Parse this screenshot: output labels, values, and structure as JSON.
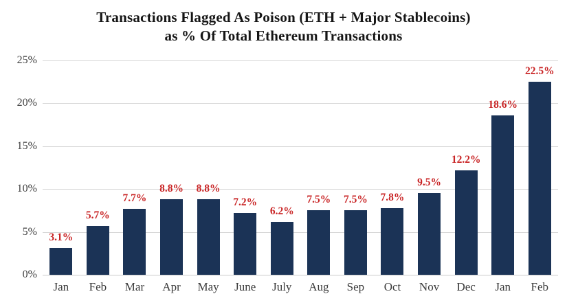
{
  "chart_data": {
    "type": "bar",
    "title_line1": "Transactions Flagged As Poison (ETH + Major Stablecoins)",
    "title_line2": "as % Of Total Ethereum Transactions",
    "categories": [
      "Jan",
      "Feb",
      "Mar",
      "Apr",
      "May",
      "June",
      "July",
      "Aug",
      "Sep",
      "Oct",
      "Nov",
      "Dec",
      "Jan",
      "Feb"
    ],
    "values": [
      3.1,
      5.7,
      7.7,
      8.8,
      8.8,
      7.2,
      6.2,
      7.5,
      7.5,
      7.8,
      9.5,
      12.2,
      18.6,
      22.5
    ],
    "data_labels": [
      "3.1%",
      "5.7%",
      "7.7%",
      "8.8%",
      "8.8%",
      "7.2%",
      "6.2%",
      "7.5%",
      "7.5%",
      "7.8%",
      "9.5%",
      "12.2%",
      "18.6%",
      "22.5%"
    ],
    "y_ticks": [
      "0%",
      "5%",
      "10%",
      "15%",
      "20%",
      "25%"
    ],
    "y_tick_values": [
      0,
      5,
      10,
      15,
      20,
      25
    ],
    "ylim": [
      0,
      25
    ],
    "xlabel": "",
    "ylabel": "",
    "grid": "horizontal",
    "legend": "none",
    "bar_color": "#1b3356",
    "label_color": "#c92526",
    "gridline_color": "#d6d6d6"
  }
}
